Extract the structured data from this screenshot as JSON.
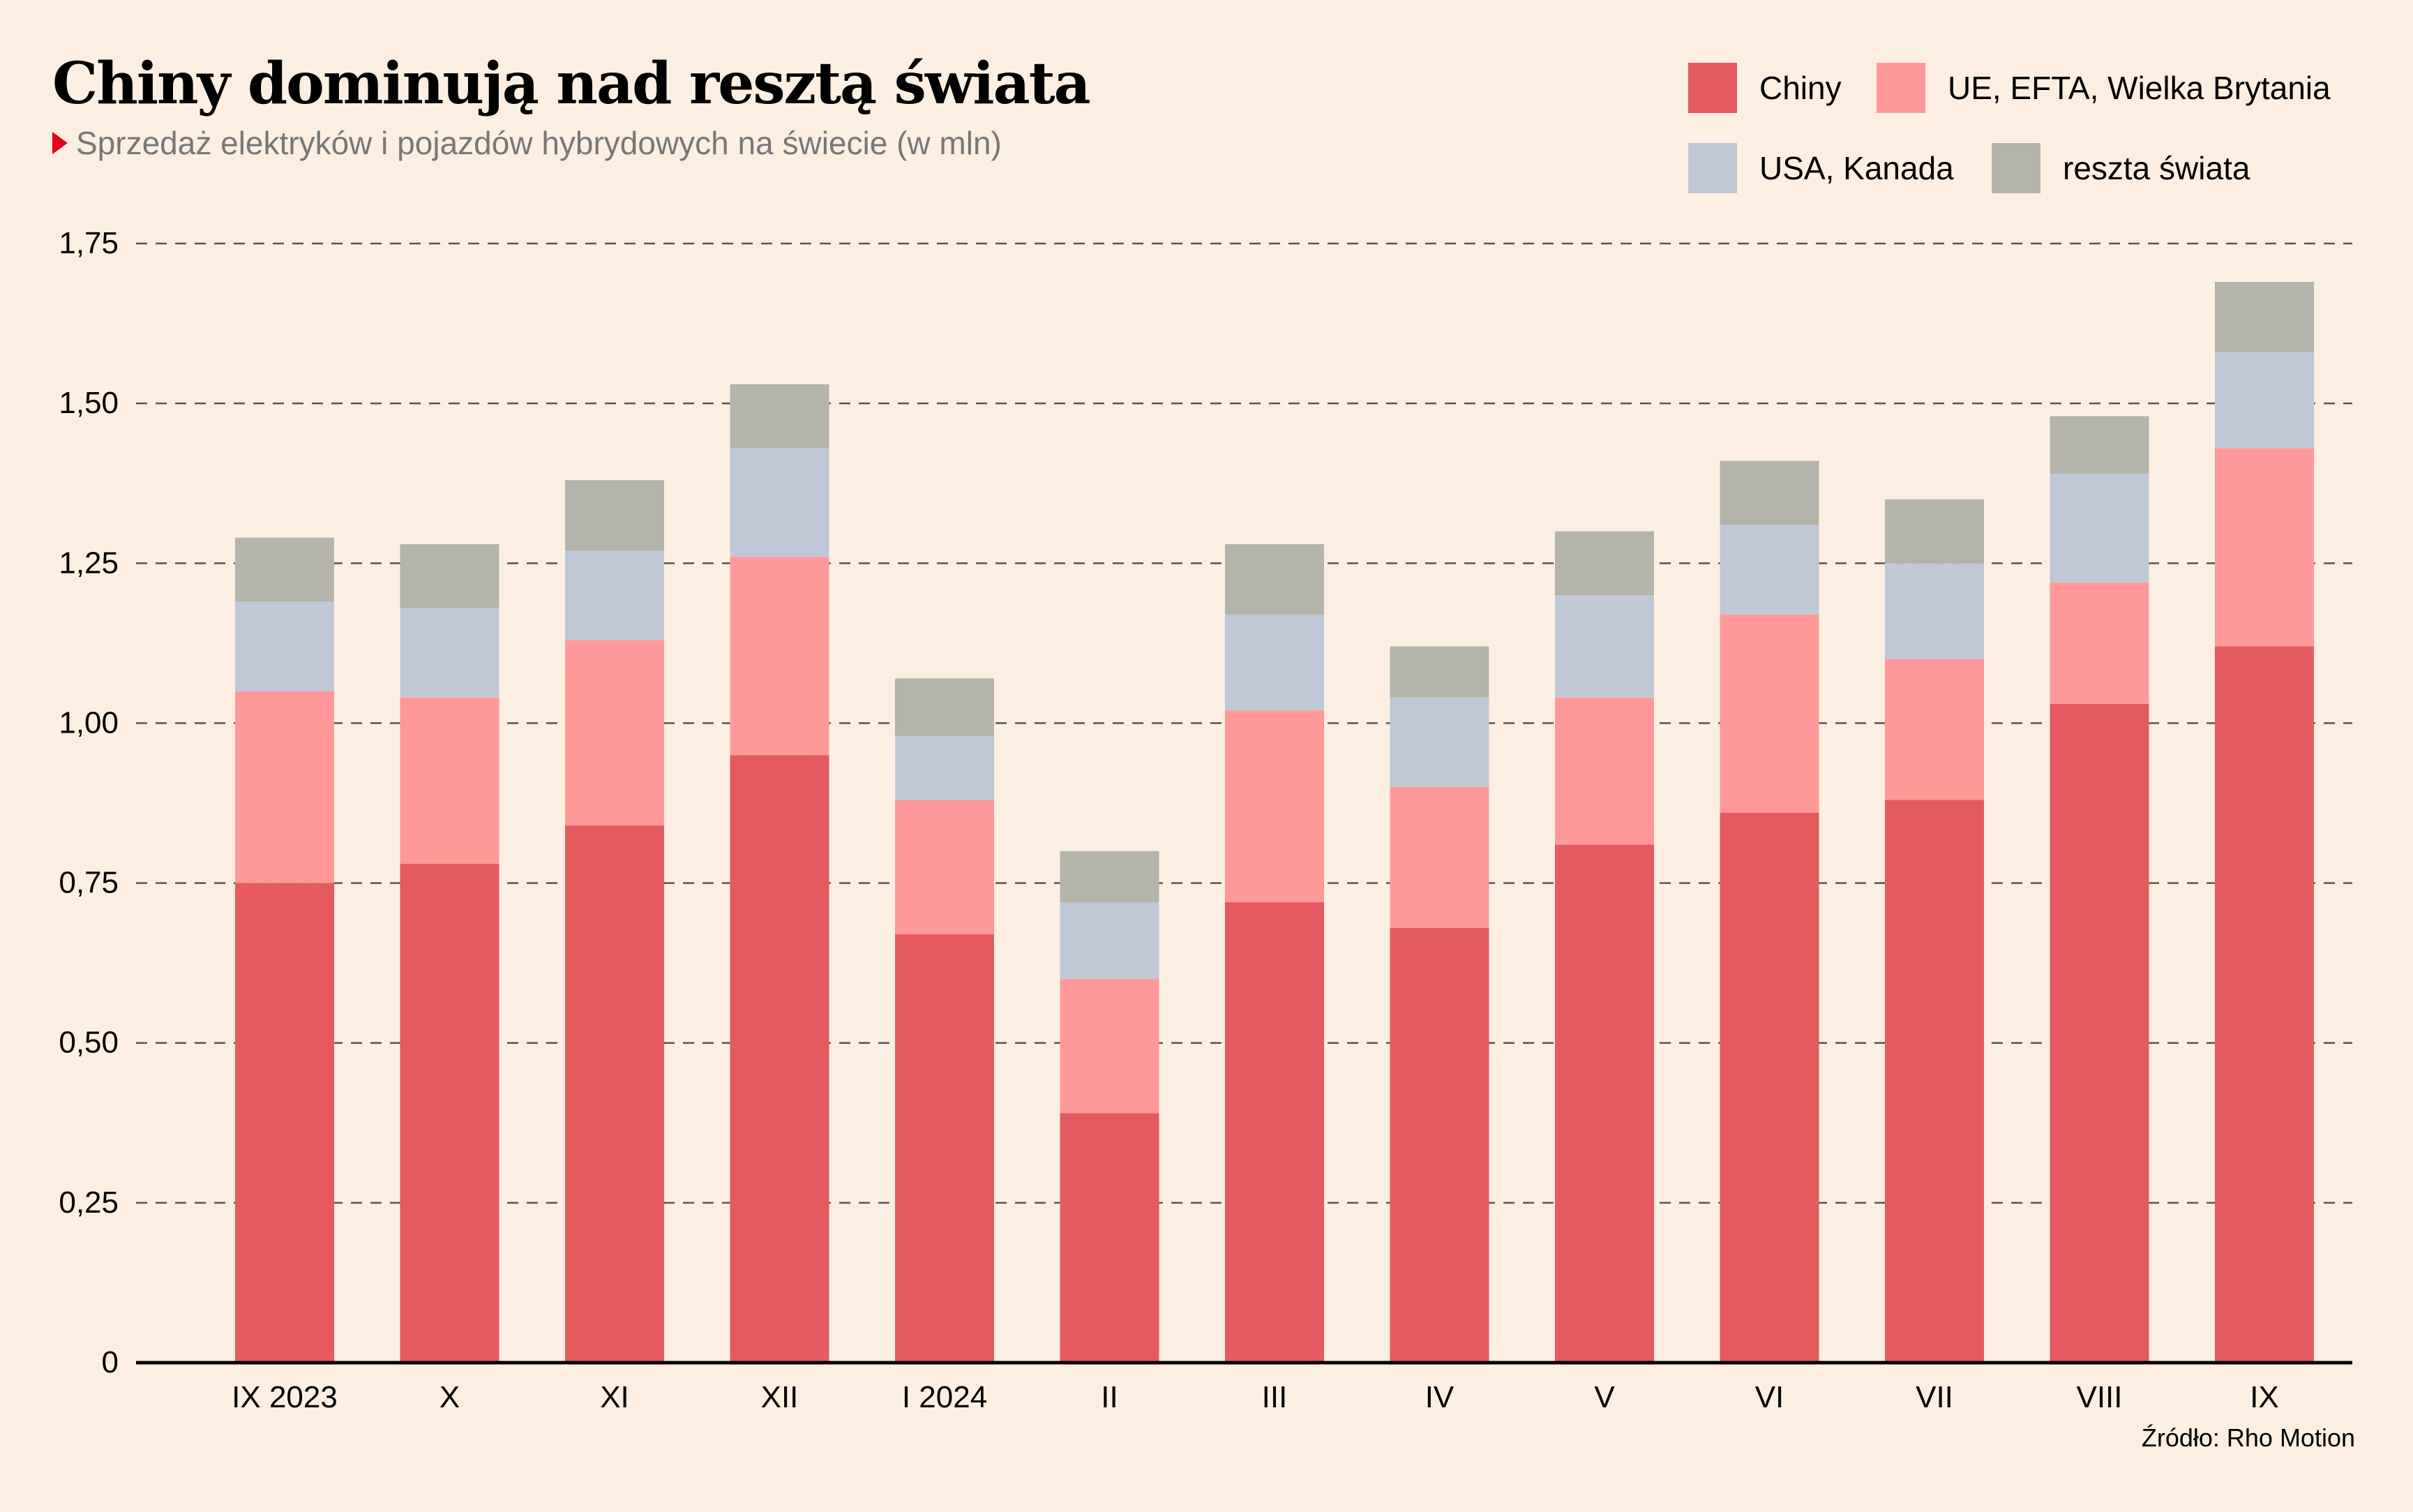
{
  "title": "Chiny dominują nad resztą świata",
  "subtitle": "Sprzedaż elektryków i pojazdów hybrydowych na świecie (w mln)",
  "source": "Źródło: Rho Motion",
  "chart_data": {
    "type": "bar",
    "stacked": true,
    "title": "Chiny dominują nad resztą świata",
    "subtitle": "Sprzedaż elektryków i pojazdów hybrydowych na świecie (w mln)",
    "xlabel": "",
    "ylabel": "",
    "ylim": [
      0,
      1.75
    ],
    "yticks": [
      0,
      0.25,
      0.5,
      0.75,
      1.0,
      1.25,
      1.5,
      1.75
    ],
    "ytick_labels": [
      "0",
      "0,25",
      "0,50",
      "0,75",
      "1,00",
      "1,25",
      "1,50",
      "1,75"
    ],
    "grid": true,
    "legend_position": "top-right",
    "categories": [
      "IX 2023",
      "X",
      "XI",
      "XII",
      "I 2024",
      "II",
      "III",
      "IV",
      "V",
      "VI",
      "VII",
      "VIII",
      "IX"
    ],
    "series": [
      {
        "name": "Chiny",
        "color": "#e55a5e",
        "values": [
          0.75,
          0.78,
          0.84,
          0.95,
          0.67,
          0.39,
          0.72,
          0.68,
          0.81,
          0.86,
          0.88,
          1.03,
          1.12
        ]
      },
      {
        "name": "UE, EFTA, Wielka Brytania",
        "color": "#ff9999",
        "values": [
          0.3,
          0.26,
          0.29,
          0.31,
          0.21,
          0.21,
          0.3,
          0.22,
          0.23,
          0.31,
          0.22,
          0.19,
          0.31
        ]
      },
      {
        "name": "USA, Kanada",
        "color": "#c0c7d7",
        "values": [
          0.14,
          0.14,
          0.14,
          0.17,
          0.1,
          0.12,
          0.15,
          0.14,
          0.16,
          0.14,
          0.15,
          0.17,
          0.15
        ]
      },
      {
        "name": "reszta świata",
        "color": "#b4b4aa",
        "values": [
          0.1,
          0.1,
          0.11,
          0.1,
          0.09,
          0.08,
          0.11,
          0.08,
          0.1,
          0.1,
          0.1,
          0.09,
          0.11
        ]
      }
    ],
    "source": "Źródło: Rho Motion"
  }
}
